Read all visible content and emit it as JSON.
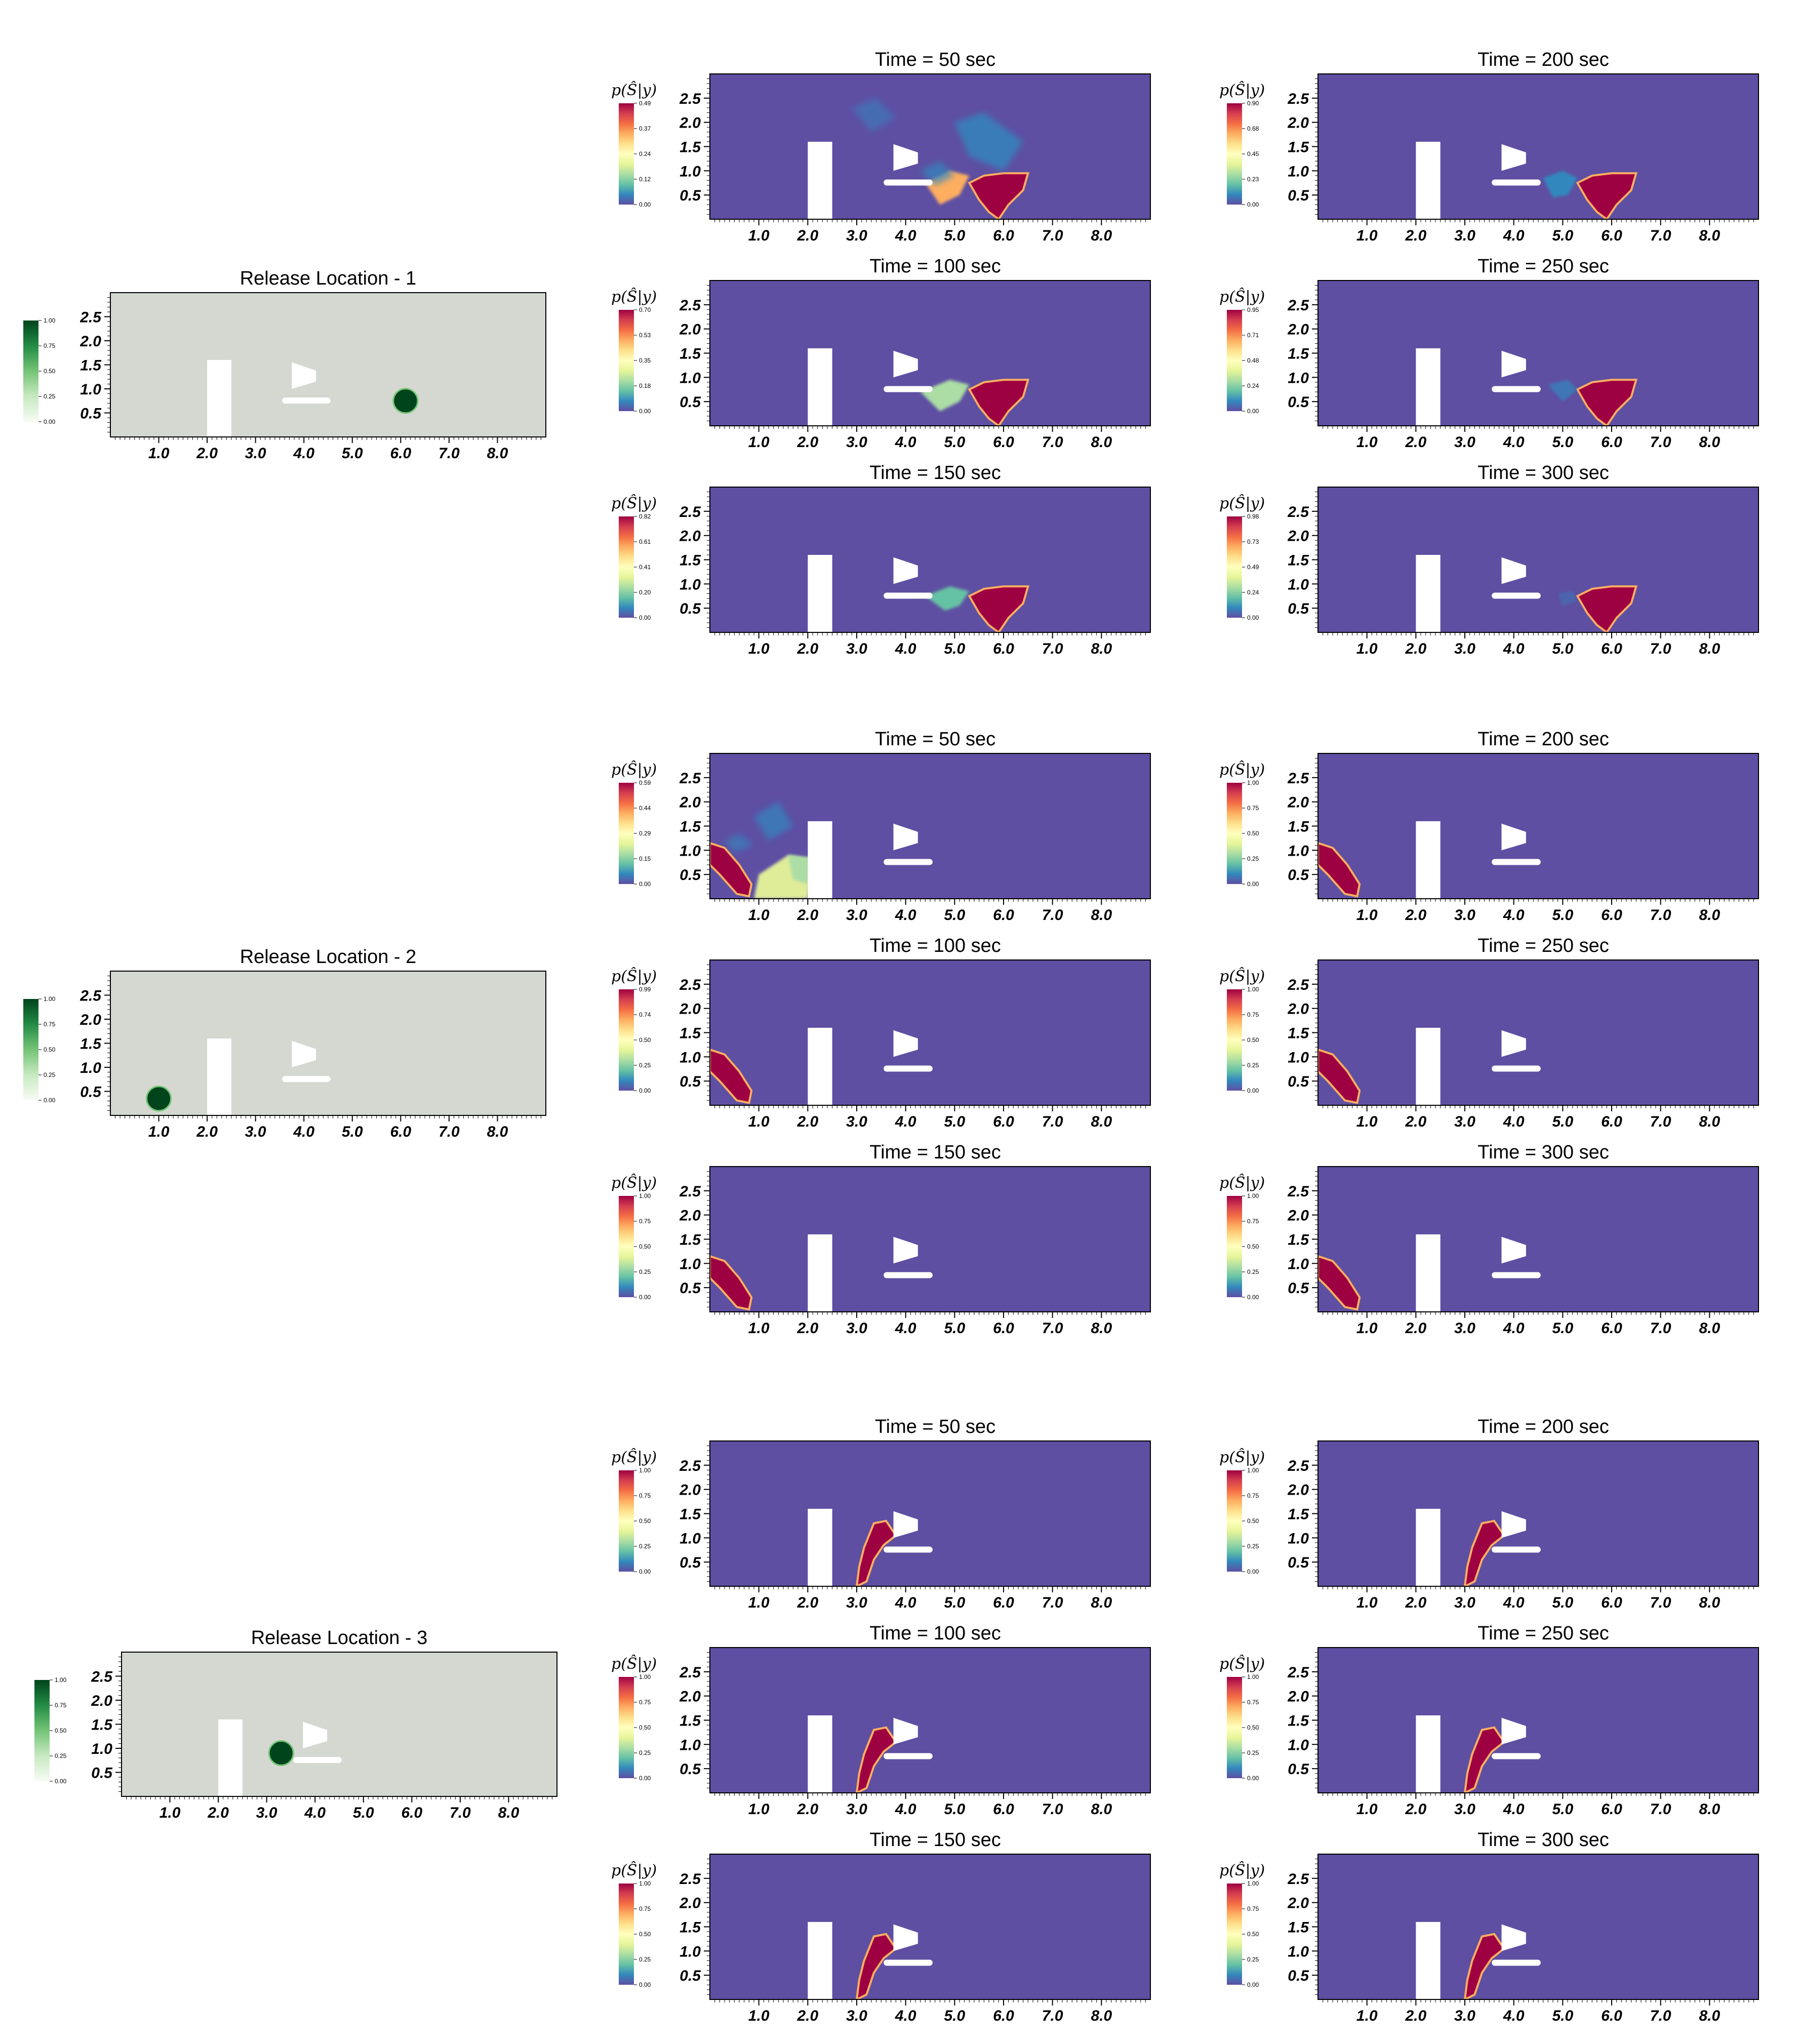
{
  "figure": {
    "background_color": "#ffffff",
    "domain_color": "#d4d8d1",
    "prob_background_color": "#5e4fa2",
    "source_color": "#00441b",
    "high_prob_color": "#9e0142",
    "obstacle_color": "#ffffff"
  },
  "chart_data": [
    {
      "id": "release-1",
      "type": "heatmap",
      "title": "Release Location - 1",
      "colorbar": {
        "colormap": "Greens",
        "ticks": [
          "1.00",
          "0.75",
          "0.50",
          "0.25",
          "0.00"
        ]
      },
      "x_ticks": [
        "1.0",
        "2.0",
        "3.0",
        "4.0",
        "5.0",
        "6.0",
        "7.0",
        "8.0"
      ],
      "y_ticks": [
        "2.5",
        "2.0",
        "1.5",
        "1.0",
        "0.5"
      ],
      "xlim": [
        0,
        9
      ],
      "ylim": [
        0,
        3
      ],
      "source": {
        "x": 6.1,
        "y": 0.75,
        "value": 1.0
      },
      "panels": [
        {
          "title": "Time = 50 sec",
          "cb_label": "p(Ŝ|y)",
          "cb_ticks": [
            "0.49",
            "0.37",
            "0.24",
            "0.12",
            "0.00"
          ]
        },
        {
          "title": "Time = 100 sec",
          "cb_label": "p(Ŝ|y)",
          "cb_ticks": [
            "0.70",
            "0.53",
            "0.35",
            "0.18",
            "0.00"
          ]
        },
        {
          "title": "Time = 150 sec",
          "cb_label": "p(Ŝ|y)",
          "cb_ticks": [
            "0.82",
            "0.61",
            "0.41",
            "0.20",
            "0.00"
          ]
        },
        {
          "title": "Time = 200 sec",
          "cb_label": "p(Ŝ|y)",
          "cb_ticks": [
            "0.90",
            "0.68",
            "0.45",
            "0.23",
            "0.00"
          ]
        },
        {
          "title": "Time = 250 sec",
          "cb_label": "p(Ŝ|y)",
          "cb_ticks": [
            "0.95",
            "0.71",
            "0.48",
            "0.24",
            "0.00"
          ]
        },
        {
          "title": "Time = 300 sec",
          "cb_label": "p(Ŝ|y)",
          "cb_ticks": [
            "0.98",
            "0.73",
            "0.49",
            "0.24",
            "0.00"
          ]
        }
      ]
    },
    {
      "id": "release-2",
      "type": "heatmap",
      "title": "Release Location - 2",
      "colorbar": {
        "colormap": "Greens",
        "ticks": [
          "1.00",
          "0.75",
          "0.50",
          "0.25",
          "0.00"
        ]
      },
      "x_ticks": [
        "1.0",
        "2.0",
        "3.0",
        "4.0",
        "5.0",
        "6.0",
        "7.0",
        "8.0"
      ],
      "y_ticks": [
        "2.5",
        "2.0",
        "1.5",
        "1.0",
        "0.5"
      ],
      "xlim": [
        0,
        9
      ],
      "ylim": [
        0,
        3
      ],
      "source": {
        "x": 1.0,
        "y": 0.35,
        "value": 1.0
      },
      "panels": [
        {
          "title": "Time = 50 sec",
          "cb_label": "p(Ŝ|y)",
          "cb_ticks": [
            "0.59",
            "0.44",
            "0.29",
            "0.15",
            "0.00"
          ]
        },
        {
          "title": "Time = 100 sec",
          "cb_label": "p(Ŝ|y)",
          "cb_ticks": [
            "0.99",
            "0.74",
            "0.50",
            "0.25",
            "0.00"
          ]
        },
        {
          "title": "Time = 150 sec",
          "cb_label": "p(Ŝ|y)",
          "cb_ticks": [
            "1.00",
            "0.75",
            "0.50",
            "0.25",
            "0.00"
          ]
        },
        {
          "title": "Time = 200 sec",
          "cb_label": "p(Ŝ|y)",
          "cb_ticks": [
            "1.00",
            "0.75",
            "0.50",
            "0.25",
            "0.00"
          ]
        },
        {
          "title": "Time = 250 sec",
          "cb_label": "p(Ŝ|y)",
          "cb_ticks": [
            "1.00",
            "0.75",
            "0.50",
            "0.25",
            "0.00"
          ]
        },
        {
          "title": "Time = 300 sec",
          "cb_label": "p(Ŝ|y)",
          "cb_ticks": [
            "1.00",
            "0.75",
            "0.50",
            "0.25",
            "0.00"
          ]
        }
      ]
    },
    {
      "id": "release-3",
      "type": "heatmap",
      "title": "Release Location - 3",
      "colorbar": {
        "colormap": "Greens",
        "ticks": [
          "1.00",
          "0.75",
          "0.50",
          "0.25",
          "0.00"
        ]
      },
      "x_ticks": [
        "1.0",
        "2.0",
        "3.0",
        "4.0",
        "5.0",
        "6.0",
        "7.0",
        "8.0"
      ],
      "y_ticks": [
        "2.5",
        "2.0",
        "1.5",
        "1.0",
        "0.5"
      ],
      "xlim": [
        0,
        9
      ],
      "ylim": [
        0,
        3
      ],
      "source": {
        "x": 3.3,
        "y": 0.9,
        "value": 1.0
      },
      "panels": [
        {
          "title": "Time = 50 sec",
          "cb_label": "p(Ŝ|y)",
          "cb_ticks": [
            "1.00",
            "0.75",
            "0.50",
            "0.25",
            "0.00"
          ]
        },
        {
          "title": "Time = 100 sec",
          "cb_label": "p(Ŝ|y)",
          "cb_ticks": [
            "1.00",
            "0.75",
            "0.50",
            "0.25",
            "0.00"
          ]
        },
        {
          "title": "Time = 150 sec",
          "cb_label": "p(Ŝ|y)",
          "cb_ticks": [
            "1.00",
            "0.75",
            "0.50",
            "0.25",
            "0.00"
          ]
        },
        {
          "title": "Time = 200 sec",
          "cb_label": "p(Ŝ|y)",
          "cb_ticks": [
            "1.00",
            "0.75",
            "0.50",
            "0.25",
            "0.00"
          ]
        },
        {
          "title": "Time = 250 sec",
          "cb_label": "p(Ŝ|y)",
          "cb_ticks": [
            "1.00",
            "0.75",
            "0.50",
            "0.25",
            "0.00"
          ]
        },
        {
          "title": "Time = 300 sec",
          "cb_label": "p(Ŝ|y)",
          "cb_ticks": [
            "1.00",
            "0.75",
            "0.50",
            "0.25",
            "0.00"
          ]
        }
      ]
    }
  ]
}
